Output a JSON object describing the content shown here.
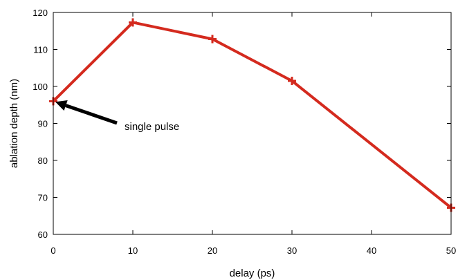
{
  "chart_data": {
    "type": "line",
    "title": "",
    "xlabel": "delay (ps)",
    "ylabel": "ablation depth (nm)",
    "xlim": [
      0,
      50
    ],
    "ylim": [
      60,
      120
    ],
    "x_ticks": [
      0,
      10,
      20,
      30,
      40,
      50
    ],
    "y_ticks": [
      60,
      70,
      80,
      90,
      100,
      110,
      120
    ],
    "grid": false,
    "legend": "none",
    "series": [
      {
        "color": "#d42a1e",
        "marker": "plus",
        "x": [
          0,
          10,
          20,
          30,
          50
        ],
        "y": [
          96,
          117.3,
          112.8,
          101.5,
          67.2
        ]
      }
    ],
    "annotations": [
      {
        "text": "single pulse",
        "arrow_to": {
          "x": 0,
          "y": 96
        }
      }
    ]
  }
}
